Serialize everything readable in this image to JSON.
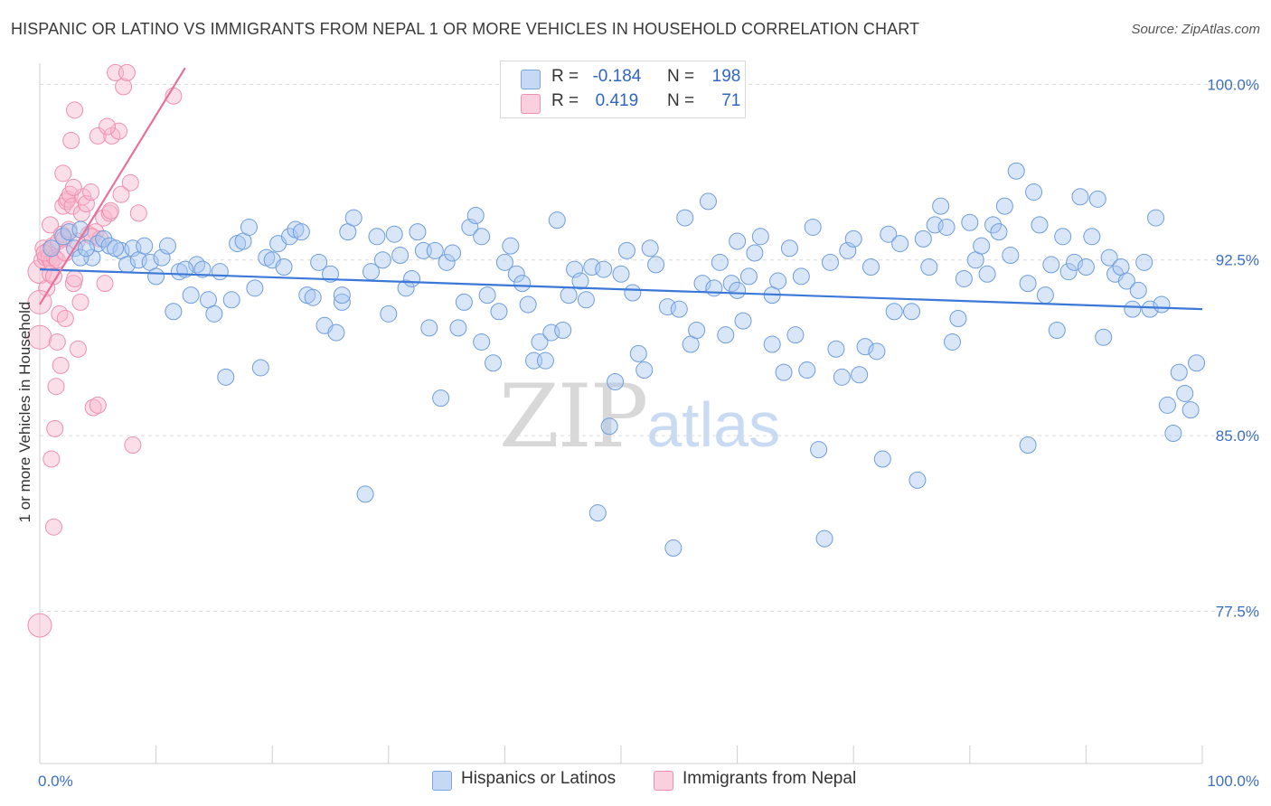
{
  "header": {
    "title": "HISPANIC OR LATINO VS IMMIGRANTS FROM NEPAL 1 OR MORE VEHICLES IN HOUSEHOLD CORRELATION CHART",
    "source": "Source: ZipAtlas.com"
  },
  "legend": {
    "rows": [
      {
        "r_label": "R =",
        "r_value": "-0.184",
        "n_label": "N =",
        "n_value": "198",
        "color": "#a9c7f0"
      },
      {
        "r_label": "R =",
        "r_value": "0.419",
        "n_label": "N =",
        "n_value": "71",
        "color": "#f6b8cc"
      }
    ]
  },
  "bottom_legend": {
    "items": [
      {
        "label": "Hispanics or Latinos",
        "color": "#a9c7f0"
      },
      {
        "label": "Immigrants from Nepal",
        "color": "#f6b8cc"
      }
    ]
  },
  "watermark": {
    "zip": "ZIP",
    "atlas": "atlas"
  },
  "chart_data": {
    "type": "scatter",
    "ylabel": "1 or more Vehicles in Household",
    "xlim": [
      0,
      100
    ],
    "ylim": [
      71.0,
      100.9
    ],
    "x_ticks": [
      "0.0%",
      "100.0%"
    ],
    "y_ticks": [
      {
        "value": 100.0,
        "label": "100.0%"
      },
      {
        "value": 92.5,
        "label": "92.5%"
      },
      {
        "value": 85.0,
        "label": "85.0%"
      },
      {
        "value": 77.5,
        "label": "77.5%"
      }
    ],
    "grid": true,
    "colors": {
      "blue": "#3b78d8",
      "blue_fill": "#a9c7f0",
      "pink": "#e8709a",
      "pink_fill": "#f6b8cc"
    },
    "series": [
      {
        "name": "Hispanics or Latinos",
        "trend": {
          "x": [
            0,
            100
          ],
          "y": [
            92.1,
            90.4
          ]
        },
        "points": [
          [
            1.0,
            93.0
          ],
          [
            2.0,
            93.5
          ],
          [
            2.5,
            93.7
          ],
          [
            3.0,
            93.0
          ],
          [
            3.5,
            93.8
          ],
          [
            4.5,
            92.6
          ],
          [
            5.0,
            93.2
          ],
          [
            5.5,
            93.4
          ],
          [
            6.0,
            93.1
          ],
          [
            7.0,
            92.9
          ],
          [
            7.5,
            92.3
          ],
          [
            8.0,
            93.0
          ],
          [
            8.5,
            92.5
          ],
          [
            9.0,
            93.1
          ],
          [
            9.5,
            92.4
          ],
          [
            10.0,
            91.8
          ],
          [
            10.5,
            92.6
          ],
          [
            11.0,
            93.1
          ],
          [
            11.5,
            90.3
          ],
          [
            12.0,
            92.0
          ],
          [
            13.0,
            91.0
          ],
          [
            13.5,
            92.3
          ],
          [
            14.0,
            92.1
          ],
          [
            14.5,
            90.8
          ],
          [
            15.0,
            90.2
          ],
          [
            15.5,
            92.0
          ],
          [
            16.0,
            87.5
          ],
          [
            16.5,
            90.8
          ],
          [
            17.0,
            93.2
          ],
          [
            17.5,
            93.3
          ],
          [
            18.0,
            93.9
          ],
          [
            18.5,
            91.3
          ],
          [
            19.0,
            87.9
          ],
          [
            19.5,
            92.6
          ],
          [
            20.0,
            92.5
          ],
          [
            20.5,
            93.2
          ],
          [
            21.0,
            92.2
          ],
          [
            21.5,
            93.5
          ],
          [
            22.0,
            93.8
          ],
          [
            22.5,
            93.7
          ],
          [
            23.0,
            91.0
          ],
          [
            23.5,
            90.9
          ],
          [
            24.0,
            92.4
          ],
          [
            24.5,
            89.7
          ],
          [
            25.0,
            91.9
          ],
          [
            25.5,
            89.4
          ],
          [
            26.0,
            90.7
          ],
          [
            26.5,
            93.7
          ],
          [
            27.0,
            94.3
          ],
          [
            28.0,
            82.5
          ],
          [
            28.5,
            92.0
          ],
          [
            29.0,
            93.5
          ],
          [
            29.5,
            92.5
          ],
          [
            30.0,
            90.2
          ],
          [
            30.5,
            93.6
          ],
          [
            31.0,
            92.7
          ],
          [
            31.5,
            91.3
          ],
          [
            32.0,
            91.7
          ],
          [
            32.5,
            93.7
          ],
          [
            33.0,
            92.9
          ],
          [
            33.5,
            89.6
          ],
          [
            34.0,
            92.9
          ],
          [
            34.5,
            86.6
          ],
          [
            35.0,
            92.4
          ],
          [
            35.5,
            92.8
          ],
          [
            36.0,
            89.6
          ],
          [
            36.5,
            90.7
          ],
          [
            37.0,
            93.9
          ],
          [
            37.5,
            94.4
          ],
          [
            38.0,
            89.0
          ],
          [
            38.5,
            91.0
          ],
          [
            39.0,
            88.1
          ],
          [
            39.5,
            90.3
          ],
          [
            40.0,
            92.4
          ],
          [
            40.5,
            93.1
          ],
          [
            41.0,
            91.9
          ],
          [
            41.5,
            91.5
          ],
          [
            42.0,
            90.6
          ],
          [
            42.5,
            88.2
          ],
          [
            43.0,
            89.0
          ],
          [
            43.5,
            88.2
          ],
          [
            44.0,
            89.4
          ],
          [
            44.5,
            94.2
          ],
          [
            45.0,
            89.5
          ],
          [
            45.5,
            91.0
          ],
          [
            46.0,
            92.1
          ],
          [
            46.5,
            91.6
          ],
          [
            47.0,
            90.8
          ],
          [
            47.5,
            92.2
          ],
          [
            48.0,
            81.7
          ],
          [
            48.5,
            92.1
          ],
          [
            49.0,
            85.4
          ],
          [
            49.5,
            87.3
          ],
          [
            50.0,
            91.9
          ],
          [
            50.5,
            92.9
          ],
          [
            51.0,
            91.1
          ],
          [
            51.5,
            88.5
          ],
          [
            52.0,
            87.8
          ],
          [
            52.5,
            93.0
          ],
          [
            53.0,
            92.3
          ],
          [
            54.0,
            90.5
          ],
          [
            54.5,
            80.2
          ],
          [
            55.0,
            90.4
          ],
          [
            55.5,
            94.3
          ],
          [
            56.0,
            88.9
          ],
          [
            56.5,
            89.5
          ],
          [
            57.0,
            91.5
          ],
          [
            57.5,
            95.0
          ],
          [
            58.0,
            91.3
          ],
          [
            58.5,
            92.4
          ],
          [
            59.0,
            89.3
          ],
          [
            59.5,
            91.5
          ],
          [
            60.0,
            91.2
          ],
          [
            60.5,
            89.9
          ],
          [
            61.0,
            91.8
          ],
          [
            61.5,
            92.8
          ],
          [
            62.0,
            93.5
          ],
          [
            63.0,
            88.9
          ],
          [
            63.5,
            91.6
          ],
          [
            64.0,
            87.7
          ],
          [
            64.5,
            93.0
          ],
          [
            65.0,
            89.3
          ],
          [
            65.5,
            91.8
          ],
          [
            66.0,
            87.8
          ],
          [
            66.5,
            93.9
          ],
          [
            67.0,
            84.4
          ],
          [
            67.5,
            80.6
          ],
          [
            68.0,
            92.4
          ],
          [
            68.5,
            88.7
          ],
          [
            69.0,
            87.5
          ],
          [
            69.5,
            92.9
          ],
          [
            70.0,
            93.4
          ],
          [
            70.5,
            87.6
          ],
          [
            71.0,
            88.8
          ],
          [
            71.5,
            92.2
          ],
          [
            72.0,
            88.6
          ],
          [
            72.5,
            84.0
          ],
          [
            73.0,
            93.6
          ],
          [
            73.5,
            90.3
          ],
          [
            74.0,
            93.2
          ],
          [
            75.0,
            90.3
          ],
          [
            75.5,
            83.1
          ],
          [
            76.0,
            93.4
          ],
          [
            76.5,
            92.2
          ],
          [
            77.0,
            94.0
          ],
          [
            77.5,
            94.8
          ],
          [
            78.0,
            93.9
          ],
          [
            78.5,
            89.0
          ],
          [
            79.0,
            90.0
          ],
          [
            79.5,
            91.7
          ],
          [
            80.0,
            94.1
          ],
          [
            80.5,
            92.5
          ],
          [
            81.0,
            93.1
          ],
          [
            81.5,
            91.9
          ],
          [
            82.0,
            94.0
          ],
          [
            82.5,
            93.7
          ],
          [
            83.0,
            94.8
          ],
          [
            83.5,
            92.7
          ],
          [
            84.0,
            96.3
          ],
          [
            85.0,
            91.5
          ],
          [
            85.5,
            95.4
          ],
          [
            86.0,
            94.0
          ],
          [
            86.5,
            91.0
          ],
          [
            87.0,
            92.3
          ],
          [
            87.5,
            89.5
          ],
          [
            88.0,
            93.5
          ],
          [
            88.5,
            92.0
          ],
          [
            89.0,
            92.4
          ],
          [
            89.5,
            95.2
          ],
          [
            90.0,
            92.2
          ],
          [
            90.5,
            93.5
          ],
          [
            91.0,
            95.1
          ],
          [
            91.5,
            89.2
          ],
          [
            92.0,
            92.6
          ],
          [
            92.5,
            91.9
          ],
          [
            93.0,
            92.2
          ],
          [
            93.5,
            91.6
          ],
          [
            94.0,
            90.4
          ],
          [
            94.5,
            91.2
          ],
          [
            95.0,
            92.4
          ],
          [
            95.5,
            90.4
          ],
          [
            96.0,
            94.3
          ],
          [
            96.5,
            90.6
          ],
          [
            97.0,
            86.3
          ],
          [
            97.5,
            85.1
          ],
          [
            98.0,
            87.7
          ],
          [
            98.5,
            86.8
          ],
          [
            99.0,
            86.1
          ],
          [
            99.5,
            88.1
          ],
          [
            3.5,
            92.6
          ],
          [
            4.0,
            93.0
          ],
          [
            6.5,
            93.0
          ],
          [
            12.5,
            92.1
          ],
          [
            26.0,
            91.0
          ],
          [
            63.0,
            91.0
          ],
          [
            85.0,
            84.6
          ],
          [
            60.0,
            93.3
          ],
          [
            38.0,
            93.5
          ]
        ]
      },
      {
        "name": "Immigrants from Nepal",
        "trend": {
          "x": [
            0,
            12.5
          ],
          "y": [
            90.6,
            100.7
          ]
        },
        "points": [
          [
            0.0,
            92.0
          ],
          [
            0.0,
            89.2
          ],
          [
            0.0,
            76.9
          ],
          [
            0.2,
            92.5
          ],
          [
            0.3,
            93.0
          ],
          [
            0.5,
            92.6
          ],
          [
            0.6,
            91.3
          ],
          [
            0.7,
            92.9
          ],
          [
            0.8,
            92.6
          ],
          [
            0.9,
            91.9
          ],
          [
            1.0,
            92.4
          ],
          [
            1.0,
            84.0
          ],
          [
            1.1,
            93.1
          ],
          [
            1.2,
            81.1
          ],
          [
            1.3,
            92.6
          ],
          [
            1.3,
            85.3
          ],
          [
            1.4,
            87.1
          ],
          [
            1.5,
            89.0
          ],
          [
            1.6,
            93.3
          ],
          [
            1.7,
            90.2
          ],
          [
            1.8,
            88.0
          ],
          [
            1.9,
            93.6
          ],
          [
            2.0,
            94.8
          ],
          [
            2.0,
            96.2
          ],
          [
            2.1,
            93.4
          ],
          [
            2.2,
            90.0
          ],
          [
            2.3,
            95.0
          ],
          [
            2.4,
            95.1
          ],
          [
            2.5,
            93.8
          ],
          [
            2.6,
            95.3
          ],
          [
            2.7,
            97.6
          ],
          [
            2.8,
            94.8
          ],
          [
            2.9,
            91.5
          ],
          [
            3.0,
            91.7
          ],
          [
            3.0,
            98.9
          ],
          [
            3.2,
            93.3
          ],
          [
            3.3,
            88.7
          ],
          [
            3.5,
            90.7
          ],
          [
            3.6,
            94.5
          ],
          [
            3.7,
            95.2
          ],
          [
            4.0,
            94.9
          ],
          [
            4.2,
            93.6
          ],
          [
            4.4,
            95.4
          ],
          [
            4.6,
            86.2
          ],
          [
            4.8,
            93.7
          ],
          [
            5.0,
            97.8
          ],
          [
            5.0,
            86.3
          ],
          [
            5.2,
            93.4
          ],
          [
            5.5,
            94.3
          ],
          [
            5.6,
            91.5
          ],
          [
            6.0,
            94.5
          ],
          [
            6.2,
            97.8
          ],
          [
            6.5,
            100.5
          ],
          [
            6.8,
            98.0
          ],
          [
            7.0,
            95.3
          ],
          [
            7.2,
            99.9
          ],
          [
            7.5,
            100.5
          ],
          [
            7.8,
            95.8
          ],
          [
            8.0,
            84.6
          ],
          [
            8.5,
            94.5
          ],
          [
            11.5,
            99.5
          ],
          [
            0.4,
            92.8
          ],
          [
            0.9,
            94.0
          ],
          [
            1.5,
            92.5
          ],
          [
            2.2,
            92.8
          ],
          [
            2.9,
            95.6
          ],
          [
            4.5,
            93.5
          ],
          [
            6.1,
            94.6
          ],
          [
            5.8,
            98.2
          ],
          [
            0.0,
            90.7
          ],
          [
            1.2,
            91.8
          ]
        ]
      }
    ]
  }
}
